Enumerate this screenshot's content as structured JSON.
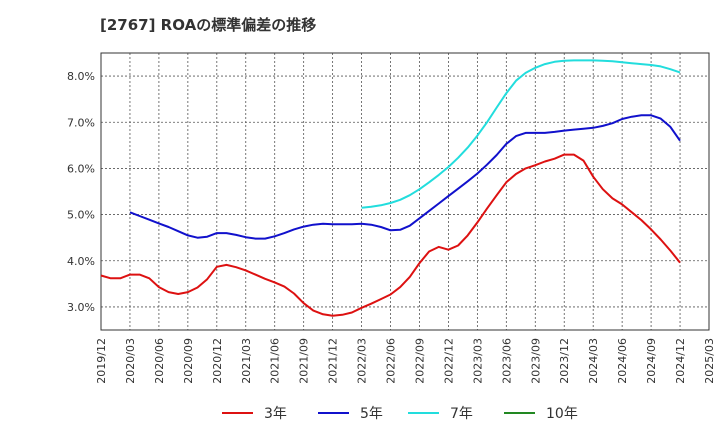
{
  "chart_data": {
    "type": "line",
    "title": "[2767]  ROAの標準偏差の推移",
    "xlabel": "",
    "ylabel": "",
    "ylim": [
      2.5,
      8.5
    ],
    "y_ticks": [
      "3.0%",
      "4.0%",
      "5.0%",
      "6.0%",
      "7.0%",
      "8.0%"
    ],
    "y_tick_values": [
      3.0,
      4.0,
      5.0,
      6.0,
      7.0,
      8.0
    ],
    "x_ticks": [
      "2019/12",
      "2020/03",
      "2020/06",
      "2020/09",
      "2020/12",
      "2021/03",
      "2021/06",
      "2021/09",
      "2021/12",
      "2022/03",
      "2022/06",
      "2022/09",
      "2022/12",
      "2023/03",
      "2023/06",
      "2023/09",
      "2023/12",
      "2024/03",
      "2024/06",
      "2024/09",
      "2024/12",
      "2025/03"
    ],
    "grid": true,
    "legend_position": "bottom",
    "series": [
      {
        "name": "3年",
        "color": "#dd1111",
        "x": [
          "2019/12",
          "2020/01",
          "2020/02",
          "2020/03",
          "2020/04",
          "2020/05",
          "2020/06",
          "2020/07",
          "2020/08",
          "2020/09",
          "2020/10",
          "2020/11",
          "2020/12",
          "2021/01",
          "2021/02",
          "2021/03",
          "2021/04",
          "2021/05",
          "2021/06",
          "2021/07",
          "2021/08",
          "2021/09",
          "2021/10",
          "2021/11",
          "2021/12",
          "2022/01",
          "2022/02",
          "2022/03",
          "2022/04",
          "2022/05",
          "2022/06",
          "2022/07",
          "2022/08",
          "2022/09",
          "2022/10",
          "2022/11",
          "2022/12",
          "2023/01",
          "2023/02",
          "2023/03",
          "2023/04",
          "2023/05",
          "2023/06",
          "2023/07",
          "2023/08",
          "2023/09",
          "2023/10",
          "2023/11",
          "2023/12",
          "2024/01",
          "2024/02",
          "2024/03",
          "2024/04",
          "2024/05",
          "2024/06",
          "2024/07",
          "2024/08",
          "2024/09",
          "2024/10",
          "2024/11",
          "2024/12"
        ],
        "values": [
          3.68,
          3.62,
          3.62,
          3.7,
          3.7,
          3.62,
          3.43,
          3.32,
          3.28,
          3.32,
          3.42,
          3.6,
          3.87,
          3.91,
          3.86,
          3.79,
          3.7,
          3.61,
          3.53,
          3.44,
          3.29,
          3.08,
          2.92,
          2.84,
          2.81,
          2.83,
          2.88,
          2.98,
          3.07,
          3.17,
          3.27,
          3.43,
          3.65,
          3.95,
          4.2,
          4.3,
          4.24,
          4.33,
          4.55,
          4.83,
          5.13,
          5.42,
          5.7,
          5.88,
          6.0,
          6.07,
          6.15,
          6.21,
          6.3,
          6.3,
          6.17,
          5.82,
          5.55,
          5.35,
          5.22,
          5.05,
          4.88,
          4.68,
          4.46,
          4.22,
          3.96
        ]
      },
      {
        "name": "5年",
        "color": "#1111cc",
        "x": [
          "2020/03",
          "2020/04",
          "2020/05",
          "2020/06",
          "2020/07",
          "2020/08",
          "2020/09",
          "2020/10",
          "2020/11",
          "2020/12",
          "2021/01",
          "2021/02",
          "2021/03",
          "2021/04",
          "2021/05",
          "2021/06",
          "2021/07",
          "2021/08",
          "2021/09",
          "2021/10",
          "2021/11",
          "2021/12",
          "2022/01",
          "2022/02",
          "2022/03",
          "2022/04",
          "2022/05",
          "2022/06",
          "2022/07",
          "2022/08",
          "2022/09",
          "2022/10",
          "2022/11",
          "2022/12",
          "2023/01",
          "2023/02",
          "2023/03",
          "2023/04",
          "2023/05",
          "2023/06",
          "2023/07",
          "2023/08",
          "2023/09",
          "2023/10",
          "2023/11",
          "2023/12",
          "2024/01",
          "2024/02",
          "2024/03",
          "2024/04",
          "2024/05",
          "2024/06",
          "2024/07",
          "2024/08",
          "2024/09",
          "2024/10",
          "2024/11",
          "2024/12"
        ],
        "values": [
          5.05,
          4.97,
          4.89,
          4.81,
          4.73,
          4.64,
          4.55,
          4.5,
          4.52,
          4.6,
          4.6,
          4.56,
          4.51,
          4.48,
          4.48,
          4.53,
          4.6,
          4.68,
          4.74,
          4.78,
          4.8,
          4.79,
          4.79,
          4.79,
          4.8,
          4.78,
          4.73,
          4.66,
          4.67,
          4.76,
          4.92,
          5.08,
          5.24,
          5.4,
          5.56,
          5.72,
          5.89,
          6.08,
          6.29,
          6.53,
          6.7,
          6.77,
          6.77,
          6.77,
          6.79,
          6.82,
          6.84,
          6.86,
          6.88,
          6.92,
          6.98,
          7.07,
          7.12,
          7.15,
          7.15,
          7.08,
          6.9,
          6.6
        ]
      },
      {
        "name": "7年",
        "color": "#22dddd",
        "x": [
          "2022/03",
          "2022/04",
          "2022/05",
          "2022/06",
          "2022/07",
          "2022/08",
          "2022/09",
          "2022/10",
          "2022/11",
          "2022/12",
          "2023/01",
          "2023/02",
          "2023/03",
          "2023/04",
          "2023/05",
          "2023/06",
          "2023/07",
          "2023/08",
          "2023/09",
          "2023/10",
          "2023/11",
          "2023/12",
          "2024/01",
          "2024/02",
          "2024/03",
          "2024/04",
          "2024/05",
          "2024/06",
          "2024/07",
          "2024/08",
          "2024/09",
          "2024/10",
          "2024/11",
          "2024/12"
        ],
        "values": [
          5.15,
          5.17,
          5.2,
          5.25,
          5.32,
          5.42,
          5.55,
          5.7,
          5.86,
          6.03,
          6.23,
          6.45,
          6.71,
          7.0,
          7.32,
          7.63,
          7.9,
          8.07,
          8.18,
          8.26,
          8.31,
          8.33,
          8.34,
          8.34,
          8.34,
          8.33,
          8.32,
          8.3,
          8.28,
          8.26,
          8.24,
          8.21,
          8.15,
          8.08
        ]
      },
      {
        "name": "10年",
        "color": "#228822",
        "x": [],
        "values": []
      }
    ]
  }
}
